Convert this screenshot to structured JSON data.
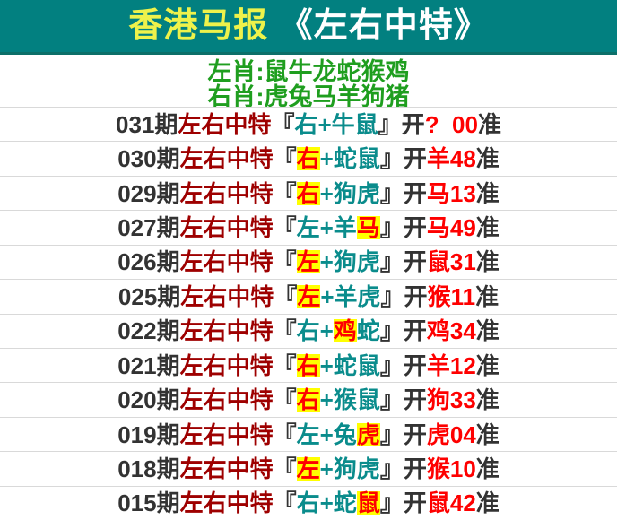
{
  "header": {
    "title_yellow": "香港马报",
    "title_white": "《左右中特》"
  },
  "zodiac": {
    "left_line": "左肖:鼠牛龙蛇猴鸡",
    "right_line": "右肖:虎兔马羊狗猪"
  },
  "colors": {
    "banner_bg": "#028080",
    "banner_yellow": "#EEF24B",
    "zodiac_green": "#1F9E1F",
    "period_dark": "#333333",
    "label_darkred": "#9E0000",
    "pick_teal": "#0A8C8C",
    "result_red": "#FE0000",
    "highlight_bg": "#FFFF00"
  },
  "rows": [
    {
      "segments": [
        {
          "t": "031期",
          "s": "dark"
        },
        {
          "t": "左右中特",
          "s": "darkred"
        },
        {
          "t": "『",
          "s": "dark"
        },
        {
          "t": "右+牛鼠",
          "s": "teal"
        },
        {
          "t": "』",
          "s": "dark"
        },
        {
          "t": "开",
          "s": "dark"
        },
        {
          "t": "?  00",
          "s": "red"
        },
        {
          "t": "准",
          "s": "dark"
        }
      ]
    },
    {
      "segments": [
        {
          "t": "030期",
          "s": "dark"
        },
        {
          "t": "左右中特",
          "s": "darkred"
        },
        {
          "t": "『",
          "s": "dark"
        },
        {
          "t": "右",
          "s": "hl"
        },
        {
          "t": "+蛇鼠",
          "s": "teal"
        },
        {
          "t": "』",
          "s": "dark"
        },
        {
          "t": "开",
          "s": "dark"
        },
        {
          "t": "羊48",
          "s": "red"
        },
        {
          "t": "准",
          "s": "dark"
        }
      ]
    },
    {
      "segments": [
        {
          "t": "029期",
          "s": "dark"
        },
        {
          "t": "左右中特",
          "s": "darkred"
        },
        {
          "t": "『",
          "s": "dark"
        },
        {
          "t": "右",
          "s": "hl"
        },
        {
          "t": "+狗虎",
          "s": "teal"
        },
        {
          "t": "』",
          "s": "dark"
        },
        {
          "t": "开",
          "s": "dark"
        },
        {
          "t": "马13",
          "s": "red"
        },
        {
          "t": "准",
          "s": "dark"
        }
      ]
    },
    {
      "segments": [
        {
          "t": "027期",
          "s": "dark"
        },
        {
          "t": "左右中特",
          "s": "darkred"
        },
        {
          "t": "『",
          "s": "dark"
        },
        {
          "t": "左+羊",
          "s": "teal"
        },
        {
          "t": "马",
          "s": "hl"
        },
        {
          "t": "』",
          "s": "dark"
        },
        {
          "t": "开",
          "s": "dark"
        },
        {
          "t": "马49",
          "s": "red"
        },
        {
          "t": "准",
          "s": "dark"
        }
      ]
    },
    {
      "segments": [
        {
          "t": "026期",
          "s": "dark"
        },
        {
          "t": "左右中特",
          "s": "darkred"
        },
        {
          "t": "『",
          "s": "dark"
        },
        {
          "t": "左",
          "s": "hl"
        },
        {
          "t": "+狗虎",
          "s": "teal"
        },
        {
          "t": "』",
          "s": "dark"
        },
        {
          "t": "开",
          "s": "dark"
        },
        {
          "t": "鼠31",
          "s": "red"
        },
        {
          "t": "准",
          "s": "dark"
        }
      ]
    },
    {
      "segments": [
        {
          "t": "025期",
          "s": "dark"
        },
        {
          "t": "左右中特",
          "s": "darkred"
        },
        {
          "t": "『",
          "s": "dark"
        },
        {
          "t": "左",
          "s": "hl"
        },
        {
          "t": "+羊虎",
          "s": "teal"
        },
        {
          "t": "』",
          "s": "dark"
        },
        {
          "t": "开",
          "s": "dark"
        },
        {
          "t": "猴11",
          "s": "red"
        },
        {
          "t": "准",
          "s": "dark"
        }
      ]
    },
    {
      "segments": [
        {
          "t": "022期",
          "s": "dark"
        },
        {
          "t": "左右中特",
          "s": "darkred"
        },
        {
          "t": "『",
          "s": "dark"
        },
        {
          "t": "右+",
          "s": "teal"
        },
        {
          "t": "鸡",
          "s": "hl"
        },
        {
          "t": "蛇",
          "s": "teal"
        },
        {
          "t": "』",
          "s": "dark"
        },
        {
          "t": "开",
          "s": "dark"
        },
        {
          "t": "鸡34",
          "s": "red"
        },
        {
          "t": "准",
          "s": "dark"
        }
      ]
    },
    {
      "segments": [
        {
          "t": "021期",
          "s": "dark"
        },
        {
          "t": "左右中特",
          "s": "darkred"
        },
        {
          "t": "『",
          "s": "dark"
        },
        {
          "t": "右",
          "s": "hl"
        },
        {
          "t": "+蛇鼠",
          "s": "teal"
        },
        {
          "t": "』",
          "s": "dark"
        },
        {
          "t": "开",
          "s": "dark"
        },
        {
          "t": "羊12",
          "s": "red"
        },
        {
          "t": "准",
          "s": "dark"
        }
      ]
    },
    {
      "segments": [
        {
          "t": "020期",
          "s": "dark"
        },
        {
          "t": "左右中特",
          "s": "darkred"
        },
        {
          "t": "『",
          "s": "dark"
        },
        {
          "t": "右",
          "s": "hl"
        },
        {
          "t": "+猴鼠",
          "s": "teal"
        },
        {
          "t": "』",
          "s": "dark"
        },
        {
          "t": "开",
          "s": "dark"
        },
        {
          "t": "狗33",
          "s": "red"
        },
        {
          "t": "准",
          "s": "dark"
        }
      ]
    },
    {
      "segments": [
        {
          "t": "019期",
          "s": "dark"
        },
        {
          "t": "左右中特",
          "s": "darkred"
        },
        {
          "t": "『",
          "s": "dark"
        },
        {
          "t": "左+兔",
          "s": "teal"
        },
        {
          "t": "虎",
          "s": "hl"
        },
        {
          "t": "』",
          "s": "dark"
        },
        {
          "t": "开",
          "s": "dark"
        },
        {
          "t": "虎04",
          "s": "red"
        },
        {
          "t": "准",
          "s": "dark"
        }
      ]
    },
    {
      "segments": [
        {
          "t": "018期",
          "s": "dark"
        },
        {
          "t": "左右中特",
          "s": "darkred"
        },
        {
          "t": "『",
          "s": "dark"
        },
        {
          "t": "左",
          "s": "hl"
        },
        {
          "t": "+狗虎",
          "s": "teal"
        },
        {
          "t": "』",
          "s": "dark"
        },
        {
          "t": "开",
          "s": "dark"
        },
        {
          "t": "猴10",
          "s": "red"
        },
        {
          "t": "准",
          "s": "dark"
        }
      ]
    },
    {
      "segments": [
        {
          "t": "015期",
          "s": "dark"
        },
        {
          "t": "左右中特",
          "s": "darkred"
        },
        {
          "t": "『",
          "s": "dark"
        },
        {
          "t": "右+蛇",
          "s": "teal"
        },
        {
          "t": "鼠",
          "s": "hl"
        },
        {
          "t": "』",
          "s": "dark"
        },
        {
          "t": "开",
          "s": "dark"
        },
        {
          "t": "鼠42",
          "s": "red"
        },
        {
          "t": "准",
          "s": "dark"
        }
      ]
    }
  ]
}
